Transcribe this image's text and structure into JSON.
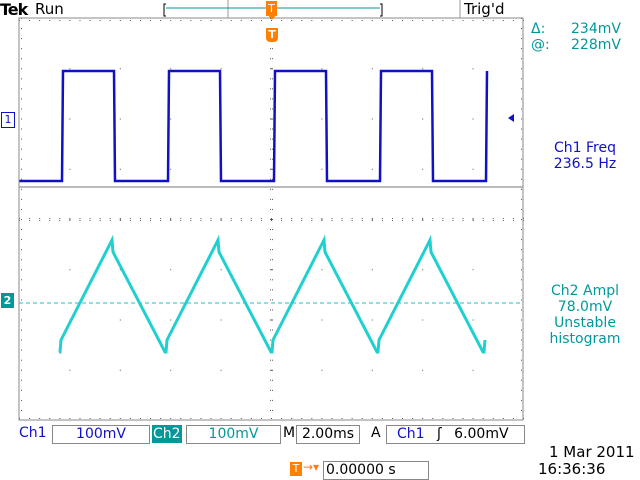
{
  "header": {
    "brand": "Tek",
    "state": "Run",
    "trigger_status": "Trig'd"
  },
  "cursor_readout": {
    "delta_label": "Δ:",
    "delta_value": "234mV",
    "at_label": "@:",
    "at_value": "228mV"
  },
  "markers": {
    "ch1": "1",
    "ch2": "2",
    "trigger": "T"
  },
  "measurements": [
    {
      "line1": "Ch1 Freq",
      "line2": "236.5 Hz"
    },
    {
      "line1": "Ch2 Ampl",
      "line2": "78.0mV",
      "line3": "Unstable",
      "line4": "histogram"
    }
  ],
  "footer": {
    "ch1_label": "Ch1",
    "ch1_scale": "100mV",
    "ch2_label": "Ch2",
    "ch2_scale": "100mV",
    "timebase_label": "M",
    "timebase": "2.00ms",
    "trigger_mode": "A",
    "trigger_source": "Ch1",
    "trigger_slope": "rising-edge-icon",
    "trigger_level": "6.00mV",
    "trigger_position": "0.00000 s",
    "date": "1 Mar  2011",
    "time": "16:36:36"
  },
  "colors": {
    "ch1": "#1010c8",
    "ch2": "#20d0d0",
    "accent": "#ff7f00",
    "teal_text": "#009999"
  }
}
